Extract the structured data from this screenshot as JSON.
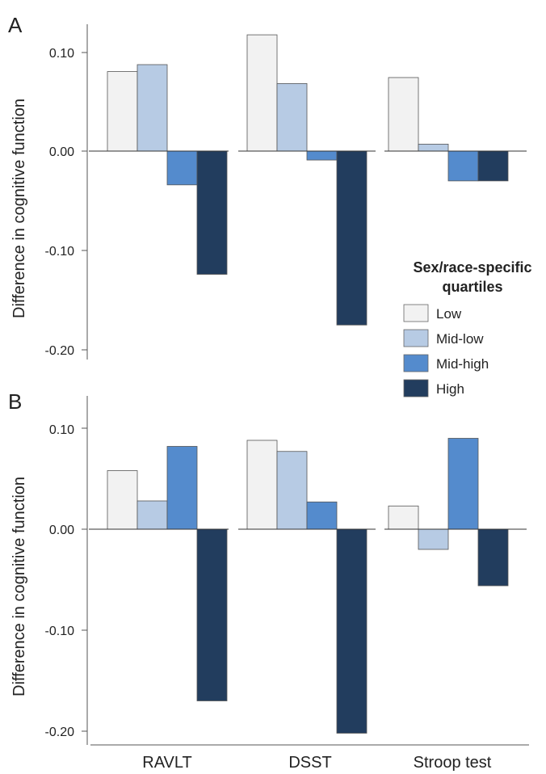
{
  "chart_data": [
    {
      "type": "bar",
      "panel": "A",
      "ylabel": "Difference in cognitive function",
      "categories": [
        "RAVLT",
        "DSST",
        "Stroop test"
      ],
      "ylim": [
        -0.2,
        0.1
      ],
      "yticks": [
        "0.10",
        "0.00",
        "-0.10",
        "-0.20"
      ],
      "series": [
        {
          "name": "Low",
          "values": [
            0.08,
            0.117,
            0.074
          ]
        },
        {
          "name": "Mid-low",
          "values": [
            0.087,
            0.068,
            0.007
          ]
        },
        {
          "name": "Mid-high",
          "values": [
            -0.034,
            -0.009,
            -0.03
          ]
        },
        {
          "name": "High",
          "values": [
            -0.124,
            -0.175,
            -0.03
          ]
        }
      ]
    },
    {
      "type": "bar",
      "panel": "B",
      "ylabel": "Difference in cognitive function",
      "categories": [
        "RAVLT",
        "DSST",
        "Stroop test"
      ],
      "ylim": [
        -0.2,
        0.1
      ],
      "yticks": [
        "0.10",
        "0.00",
        "-0.10",
        "-0.20"
      ],
      "series": [
        {
          "name": "Low",
          "values": [
            0.058,
            0.088,
            0.023
          ]
        },
        {
          "name": "Mid-low",
          "values": [
            0.028,
            0.077,
            -0.02
          ]
        },
        {
          "name": "Mid-high",
          "values": [
            0.082,
            0.027,
            0.09
          ]
        },
        {
          "name": "High",
          "values": [
            -0.17,
            -0.202,
            -0.056
          ]
        }
      ]
    }
  ],
  "legend": {
    "title_line1": "Sex/race-specific",
    "title_line2": "quartiles",
    "placement": "right, inside panel A",
    "items": [
      {
        "label": "Low",
        "color": "#f2f2f2"
      },
      {
        "label": "Mid-low",
        "color": "#b7cbe4"
      },
      {
        "label": "Mid-high",
        "color": "#548bcd"
      },
      {
        "label": "High",
        "color": "#223d5e"
      }
    ]
  },
  "panels": {
    "a_label": "A",
    "b_label": "B"
  },
  "x_labels": [
    "RAVLT",
    "DSST",
    "Stroop test"
  ]
}
